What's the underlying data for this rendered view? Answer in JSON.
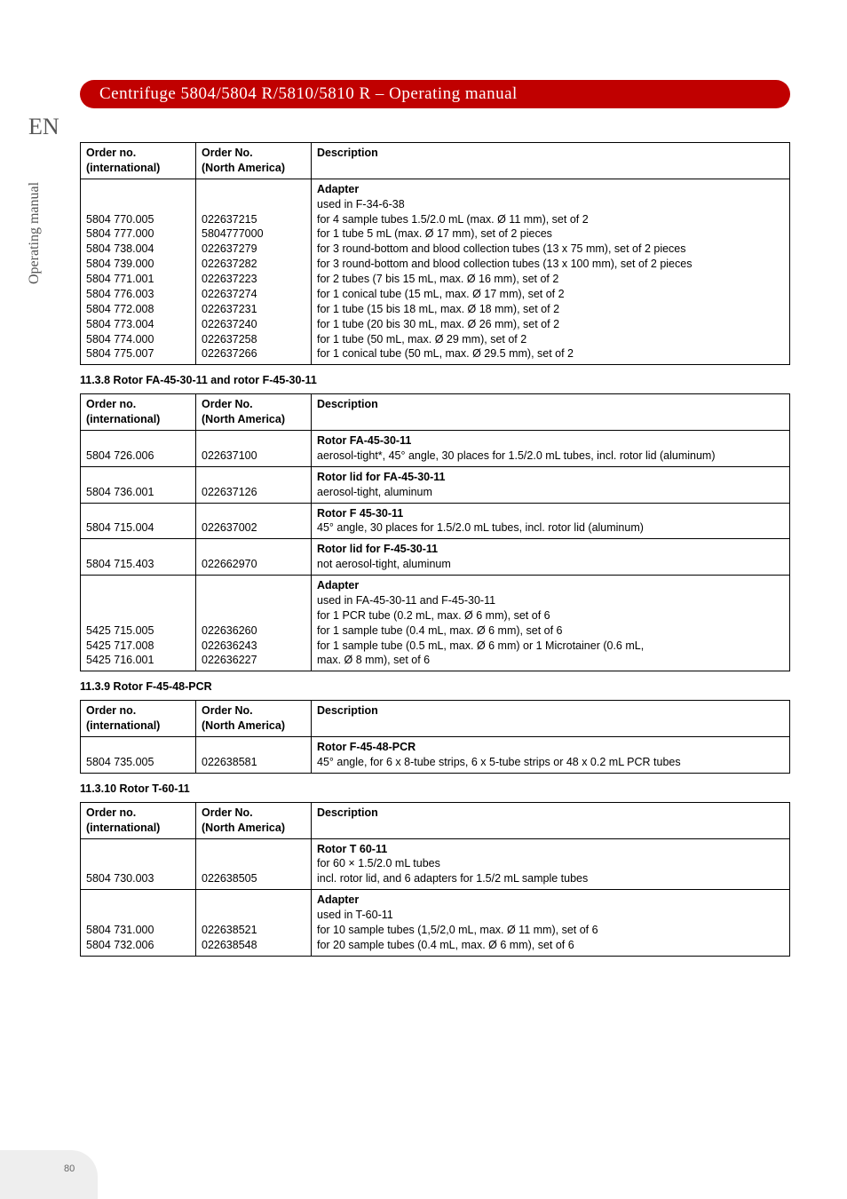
{
  "lang_badge": "EN",
  "vertical_label": "Operating manual",
  "title_bar": "Centrifuge 5804/5804 R/5810/5810 R  –  Operating manual",
  "page_number": "80",
  "headers": {
    "col1": "Order no.\n(international)",
    "col2": "Order No.\n(North America)",
    "col3": "Description"
  },
  "table1": {
    "desc_header": "Adapter",
    "desc_sub": "used in F-34-6-38",
    "rows": [
      {
        "intl": "5804 770.005",
        "na": "022637215",
        "desc": "for 4 sample tubes 1.5/2.0 mL (max. Ø 11 mm), set of 2"
      },
      {
        "intl": "5804 777.000",
        "na": "5804777000",
        "desc": "for 1  tube 5 mL (max. Ø 17 mm), set of 2 pieces"
      },
      {
        "intl": "5804 738.004",
        "na": "022637279",
        "desc": "for 3 round-bottom and blood collection tubes (13 x 75 mm), set of 2 pieces"
      },
      {
        "intl": "5804 739.000",
        "na": "022637282",
        "desc": "for 3 round-bottom and blood collection tubes (13 x 100 mm), set of 2 pieces"
      },
      {
        "intl": "5804 771.001",
        "na": "022637223",
        "desc": "for 2 tubes (7 bis 15 mL, max. Ø 16 mm), set of 2"
      },
      {
        "intl": "5804 776.003",
        "na": "022637274",
        "desc": "for 1 conical tube (15 mL, max. Ø 17 mm), set of 2"
      },
      {
        "intl": "5804 772.008",
        "na": "022637231",
        "desc": "for 1 tube (15 bis 18 mL, max. Ø 18 mm), set of 2"
      },
      {
        "intl": "5804 773.004",
        "na": "022637240",
        "desc": "for 1 tube (20 bis 30 mL, max. Ø 26 mm), set of 2"
      },
      {
        "intl": "5804 774.000",
        "na": "022637258",
        "desc": "for 1 tube (50 mL, max. Ø 29 mm), set of 2"
      },
      {
        "intl": "5804 775.007",
        "na": "022637266",
        "desc": "for 1 conical tube (50 mL, max. Ø 29.5 mm), set of 2"
      }
    ]
  },
  "heading_1138": "11.3.8   Rotor FA-45-30-11 and rotor F-45-30-11",
  "table2": {
    "rows": [
      {
        "intl": "5804 726.006",
        "na": "022637100",
        "title": "Rotor FA-45-30-11",
        "desc": "aerosol-tight*, 45° angle, 30 places for 1.5/2.0 mL tubes, incl. rotor lid (aluminum)"
      },
      {
        "intl": "5804 736.001",
        "na": "022637126",
        "title": "Rotor lid for FA-45-30-11",
        "desc": "aerosol-tight, aluminum"
      },
      {
        "intl": "5804 715.004",
        "na": "022637002",
        "title": "Rotor F 45-30-11",
        "desc": "45° angle, 30 places for 1.5/2.0 mL tubes, incl. rotor lid (aluminum)"
      },
      {
        "intl": "5804 715.403",
        "na": "022662970",
        "title": "Rotor lid for F-45-30-11",
        "desc": "not aerosol-tight, aluminum"
      }
    ],
    "adapter": {
      "title": "Adapter",
      "sub": "used in FA-45-30-11 and F-45-30-11",
      "line1": "for 1 PCR tube (0.2 mL, max. Ø 6 mm), set of 6",
      "rows": [
        {
          "intl": "5425 715.005",
          "na": "022636260",
          "desc": "for 1 sample tube (0.4 mL, max. Ø 6 mm), set of 6"
        },
        {
          "intl": "5425 717.008",
          "na": "022636243",
          "desc": "for 1 sample tube (0.5 mL, max. Ø 6 mm) or 1 Microtainer (0.6 mL,"
        },
        {
          "intl": "5425 716.001",
          "na": "022636227",
          "desc": "max. Ø 8 mm), set of 6"
        }
      ]
    }
  },
  "heading_1139": "11.3.9   Rotor F-45-48-PCR",
  "table3": {
    "rows": [
      {
        "intl": "5804 735.005",
        "na": "022638581",
        "title": "Rotor F-45-48-PCR",
        "desc": "45° angle, for 6 x 8-tube strips, 6 x 5-tube strips or 48 x 0.2 mL PCR tubes"
      }
    ]
  },
  "heading_11310": "11.3.10  Rotor T-60-11",
  "table4": {
    "rotor": {
      "intl": "5804 730.003",
      "na": "022638505",
      "title": "Rotor T 60-11",
      "line1": "for 60 × 1.5/2.0 mL tubes",
      "line2": "incl. rotor lid, and 6 adapters for 1.5/2 mL sample tubes"
    },
    "adapter": {
      "title": "Adapter",
      "sub": "used in T-60-11",
      "rows": [
        {
          "intl": "5804 731.000",
          "na": "022638521",
          "desc": "for 10 sample tubes (1,5/2,0 mL, max. Ø 11 mm), set of 6"
        },
        {
          "intl": "5804 732.006",
          "na": "022638548",
          "desc": "for 20 sample tubes (0.4 mL, max. Ø 6 mm), set of 6"
        }
      ]
    }
  }
}
